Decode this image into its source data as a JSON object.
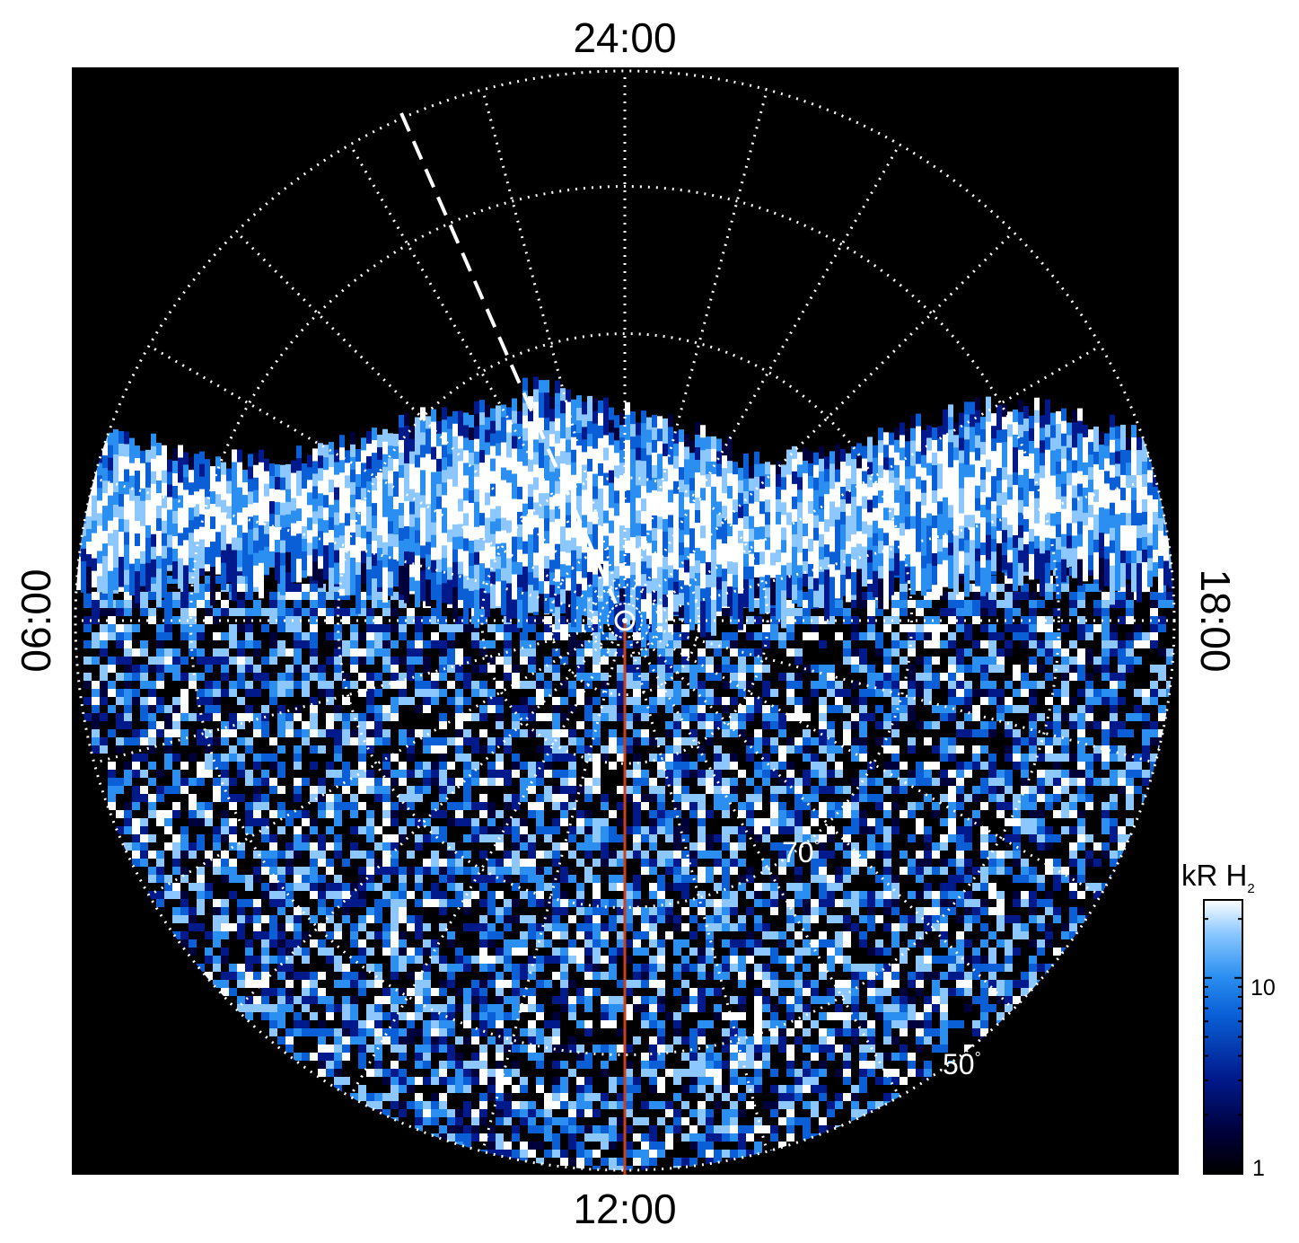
{
  "projection": {
    "time_labels": {
      "top": "24:00",
      "bottom": "12:00",
      "left": "06:00",
      "right": "18:00"
    },
    "latitude_labels": [
      {
        "value": "70",
        "unit": "°"
      },
      {
        "value": "50",
        "unit": "°"
      }
    ],
    "grid_color": "#ffffff",
    "background_color": "#000000",
    "noon_line_color": "#c8401c"
  },
  "colorbar": {
    "label_main": "kR H",
    "label_sub": "2",
    "scale": "log",
    "range": [
      1,
      25
    ],
    "tick_labels": [
      "10",
      "1"
    ],
    "colors": [
      "#000000",
      "#00003a",
      "#001a8c",
      "#0a5fd6",
      "#2a8ff0",
      "#8cc8ff",
      "#ffffff"
    ]
  }
}
